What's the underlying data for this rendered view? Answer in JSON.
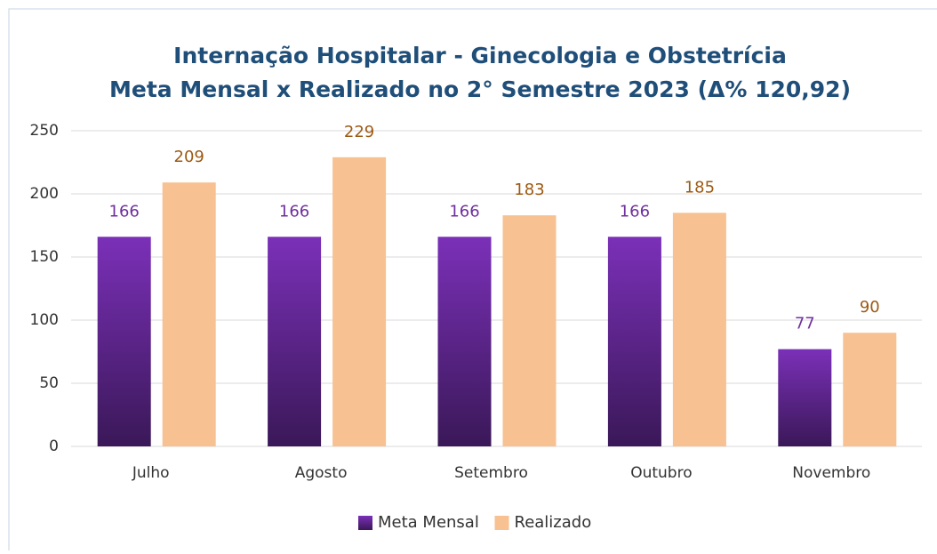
{
  "chart_data": {
    "type": "bar",
    "title": "Internação Hospitalar - Ginecologia e Obstetrícia",
    "subtitle": "Meta Mensal x Realizado no 2° Semestre 2023 (Δ% 120,92)",
    "categories": [
      "Julho",
      "Agosto",
      "Setembro",
      "Outubro",
      "Novembro"
    ],
    "series": [
      {
        "name": "Meta Mensal",
        "color": "#7030a0",
        "label_color": "#7030a0",
        "values": [
          166,
          166,
          166,
          166,
          77
        ]
      },
      {
        "name": "Realizado",
        "color": "#f8c191",
        "label_color": "#9c5a14",
        "values": [
          209,
          229,
          183,
          185,
          90
        ]
      }
    ],
    "ylim": [
      0,
      250
    ],
    "yticks": [
      0,
      50,
      100,
      150,
      200,
      250
    ],
    "grid": true,
    "legend": "bottom"
  }
}
